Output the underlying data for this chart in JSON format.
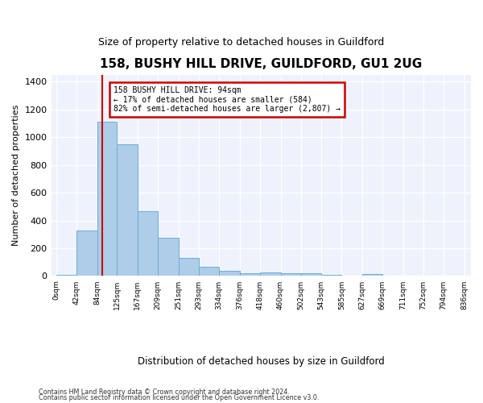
{
  "title": "158, BUSHY HILL DRIVE, GUILDFORD, GU1 2UG",
  "subtitle": "Size of property relative to detached houses in Guildford",
  "xlabel": "Distribution of detached houses by size in Guildford",
  "ylabel": "Number of detached properties",
  "bar_values": [
    10,
    328,
    1110,
    950,
    465,
    278,
    130,
    68,
    40,
    22,
    25,
    22,
    18,
    10,
    0,
    12,
    0,
    0,
    0,
    0
  ],
  "bin_edges": [
    0,
    42,
    84,
    125,
    167,
    209,
    251,
    293,
    334,
    376,
    418,
    460,
    502,
    543,
    585,
    627,
    669,
    711,
    752,
    794,
    836
  ],
  "bar_labels": [
    "0sqm",
    "42sqm",
    "84sqm",
    "125sqm",
    "167sqm",
    "209sqm",
    "251sqm",
    "293sqm",
    "334sqm",
    "376sqm",
    "418sqm",
    "460sqm",
    "502sqm",
    "543sqm",
    "585sqm",
    "627sqm",
    "669sqm",
    "711sqm",
    "752sqm",
    "794sqm",
    "836sqm"
  ],
  "bar_color": "#aecde8",
  "bar_edge_color": "#6baed6",
  "vline_x": 94,
  "vline_color": "#cc0000",
  "annotation_line1": "158 BUSHY HILL DRIVE: 94sqm",
  "annotation_line2": "← 17% of detached houses are smaller (584)",
  "annotation_line3": "82% of semi-detached houses are larger (2,807) →",
  "ann_box_edge_color": "#cc0000",
  "ylim_max": 1450,
  "yticks": [
    0,
    200,
    400,
    600,
    800,
    1000,
    1200,
    1400
  ],
  "plot_bg_color": "#eef2fc",
  "footer_line1": "Contains HM Land Registry data © Crown copyright and database right 2024.",
  "footer_line2": "Contains public sector information licensed under the Open Government Licence v3.0."
}
